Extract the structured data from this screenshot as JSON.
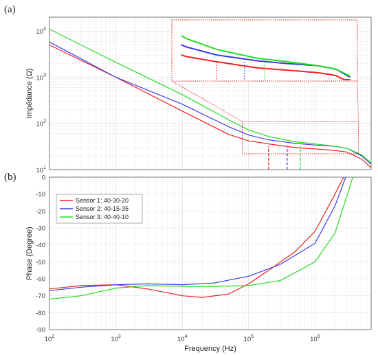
{
  "panels": {
    "a": {
      "label": "(a)"
    },
    "b": {
      "label": "(b)"
    }
  },
  "colors": {
    "sensor1": "#ee2020",
    "sensor2": "#3a3ae6",
    "sensor3": "#20dd20",
    "zoom_box": "#e02020"
  },
  "chart_data": [
    {
      "type": "line",
      "panel": "(a)",
      "xlabel": "",
      "ylabel": "Impédance (Ω)",
      "x_scale": "log",
      "y_scale": "log",
      "xlim": [
        100,
        7000000
      ],
      "ylim": [
        10,
        20000
      ],
      "y_ticks": [
        {
          "mant": "10",
          "exp": "1"
        },
        {
          "mant": "10",
          "exp": "2"
        },
        {
          "mant": "10",
          "exp": "3"
        },
        {
          "mant": "10",
          "exp": "4"
        }
      ],
      "grid": true,
      "series": [
        {
          "name": "Sensor 1: 40-30-20",
          "color": "#ee2020",
          "x": [
            100,
            1000,
            10000,
            50000,
            100000,
            200000,
            500000,
            1000000,
            2000000,
            3000000,
            5000000,
            7000000
          ],
          "y": [
            5000,
            1000,
            185,
            58,
            42,
            36,
            30,
            28,
            26,
            24,
            17,
            11
          ]
        },
        {
          "name": "Sensor 2: 40-15-35",
          "color": "#3a3ae6",
          "x": [
            100,
            1000,
            10000,
            50000,
            100000,
            200000,
            500000,
            1000000,
            2000000,
            3000000,
            5000000,
            7000000
          ],
          "y": [
            5800,
            1000,
            260,
            85,
            56,
            44,
            37,
            34,
            32,
            29,
            20,
            13
          ]
        },
        {
          "name": "Sensor 3: 40-40-10",
          "color": "#20dd20",
          "x": [
            100,
            1000,
            10000,
            50000,
            100000,
            200000,
            500000,
            1000000,
            2000000,
            3000000,
            5000000,
            7000000
          ],
          "y": [
            11000,
            2100,
            420,
            120,
            72,
            52,
            40,
            36,
            32,
            29,
            21,
            14
          ]
        }
      ],
      "markers": [
        {
          "series": "Sensor 1: 40-30-20",
          "x": 200000
        },
        {
          "series": "Sensor 2: 40-15-35",
          "x": 380000
        },
        {
          "series": "Sensor 3: 40-40-10",
          "x": 600000
        }
      ],
      "zoom_region": {
        "xlim": [
          80000,
          4500000
        ],
        "ylim": [
          22,
          110
        ]
      }
    },
    {
      "type": "line",
      "panel": "(b)",
      "xlabel": "Frequency (Hz)",
      "ylabel": "Phase (Degree)",
      "x_scale": "log",
      "xlim": [
        100,
        7000000
      ],
      "ylim": [
        -90,
        0
      ],
      "x_ticks": [
        {
          "mant": "10",
          "exp": "2"
        },
        {
          "mant": "10",
          "exp": "3"
        },
        {
          "mant": "10",
          "exp": "4"
        },
        {
          "mant": "10",
          "exp": "5"
        },
        {
          "mant": "10",
          "exp": "6"
        }
      ],
      "y_ticks": [
        "0",
        "-10",
        "-20",
        "-30",
        "-40",
        "-50",
        "-60",
        "-70",
        "-80",
        "-90"
      ],
      "grid": true,
      "legend": "top-left",
      "series": [
        {
          "name": "Sensor 1: 40-30-20",
          "color": "#ee2020",
          "x": [
            100,
            300,
            1000,
            3000,
            10000,
            20000,
            50000,
            100000,
            200000,
            500000,
            1000000,
            2000000,
            2700000
          ],
          "y": [
            -66,
            -64,
            -63.5,
            -66,
            -70,
            -71,
            -69,
            -63,
            -55,
            -44,
            -32,
            -10,
            0
          ]
        },
        {
          "name": "Sensor 2: 40-15-35",
          "color": "#3a3ae6",
          "x": [
            100,
            300,
            1000,
            3000,
            10000,
            30000,
            100000,
            300000,
            1000000,
            2000000,
            2900000
          ],
          "y": [
            -67,
            -65,
            -63.5,
            -63,
            -63.5,
            -62.5,
            -58.5,
            -51.5,
            -39,
            -17,
            0
          ]
        },
        {
          "name": "Sensor 3: 40-40-10",
          "color": "#20dd20",
          "x": [
            100,
            300,
            1000,
            3000,
            10000,
            30000,
            100000,
            300000,
            1000000,
            2000000,
            3200000,
            3700000
          ],
          "y": [
            -72,
            -70,
            -65.5,
            -64,
            -64.5,
            -64.5,
            -64,
            -61,
            -50,
            -33,
            -8,
            0
          ]
        }
      ]
    }
  ]
}
